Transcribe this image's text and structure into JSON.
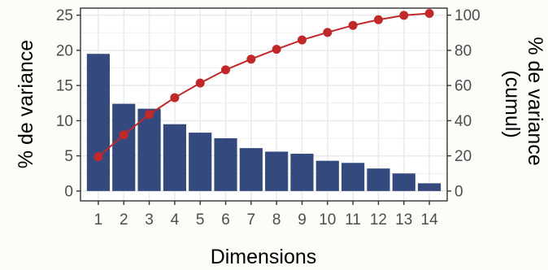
{
  "chart_data": {
    "type": "bar",
    "xlabel": "Dimensions",
    "ylabel": "% de variance",
    "y2label_lines": [
      "% de variance",
      "(cumul)"
    ],
    "categories": [
      "1",
      "2",
      "3",
      "4",
      "5",
      "6",
      "7",
      "8",
      "9",
      "10",
      "11",
      "12",
      "13",
      "14"
    ],
    "series": [
      {
        "type": "bar",
        "axis": "left",
        "values": [
          19.5,
          12.4,
          11.7,
          9.5,
          8.3,
          7.5,
          6.1,
          5.6,
          5.3,
          4.3,
          4.0,
          3.2,
          2.5,
          1.1
        ]
      },
      {
        "type": "line",
        "axis": "right",
        "values": [
          19.5,
          31.9,
          43.6,
          53.1,
          61.4,
          68.9,
          75.0,
          80.6,
          85.9,
          90.2,
          94.2,
          97.4,
          99.9,
          101.0
        ]
      }
    ],
    "ylim": [
      -1.4,
      26.0
    ],
    "y2lim": [
      -5.6,
      104.0
    ],
    "yticks": [
      0,
      5,
      10,
      15,
      20,
      25
    ],
    "y2ticks": [
      0,
      20,
      40,
      60,
      80,
      100
    ],
    "grid": true,
    "colors": {
      "bar": "#344a7f",
      "line": "#c0282a",
      "background": "#fbfdf8",
      "panel": "#ffffff",
      "grid": "#ebebeb"
    }
  }
}
